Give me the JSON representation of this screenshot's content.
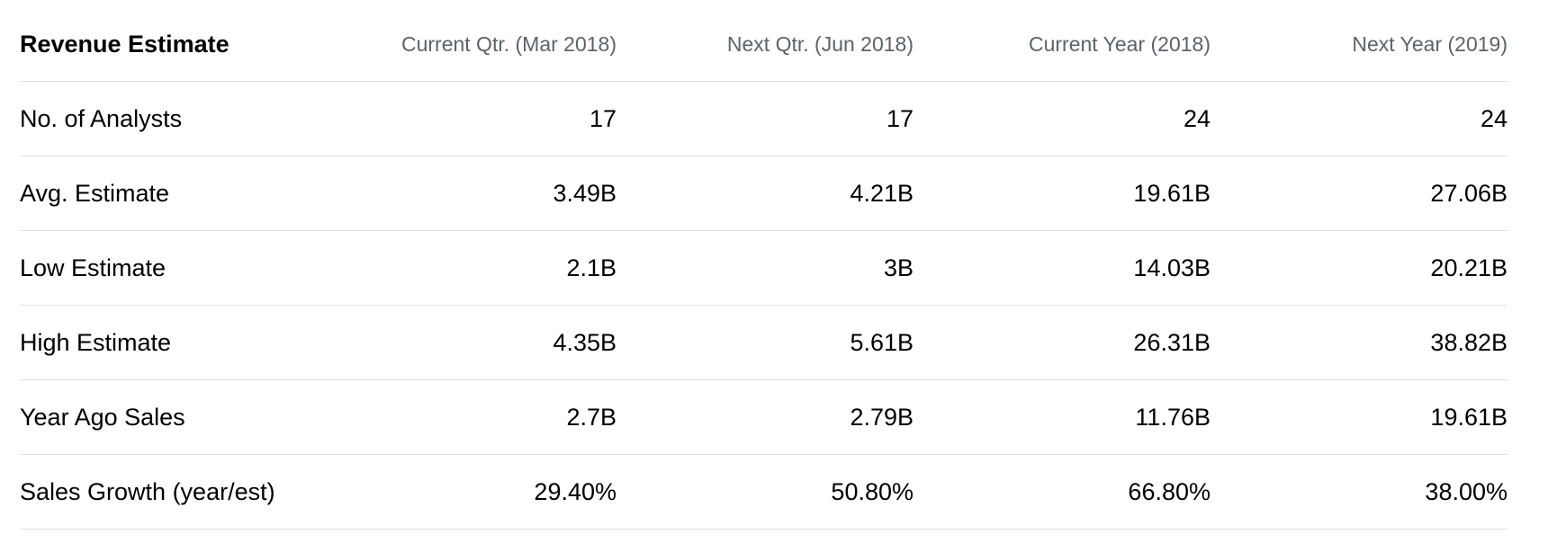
{
  "table": {
    "title": "Revenue Estimate",
    "columns": [
      "Current Qtr. (Mar 2018)",
      "Next Qtr. (Jun 2018)",
      "Current Year (2018)",
      "Next Year (2019)"
    ],
    "rows": [
      {
        "label": "No. of Analysts",
        "values": [
          "17",
          "17",
          "24",
          "24"
        ]
      },
      {
        "label": "Avg. Estimate",
        "values": [
          "3.49B",
          "4.21B",
          "19.61B",
          "27.06B"
        ]
      },
      {
        "label": "Low Estimate",
        "values": [
          "2.1B",
          "3B",
          "14.03B",
          "20.21B"
        ]
      },
      {
        "label": "High Estimate",
        "values": [
          "4.35B",
          "5.61B",
          "26.31B",
          "38.82B"
        ]
      },
      {
        "label": "Year Ago Sales",
        "values": [
          "2.7B",
          "2.79B",
          "11.76B",
          "19.61B"
        ]
      },
      {
        "label": "Sales Growth (year/est)",
        "values": [
          "29.40%",
          "50.80%",
          "66.80%",
          "38.00%"
        ]
      }
    ]
  }
}
